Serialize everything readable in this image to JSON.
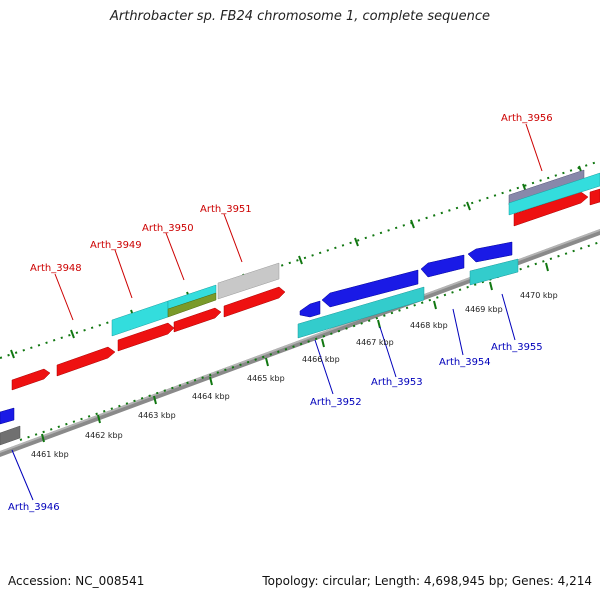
{
  "header": {
    "title": "Arthrobacter sp. FB24 chromosome 1, complete sequence"
  },
  "footer": {
    "accession": "Accession: NC_008541",
    "summary": "Topology: circular; Length: 4,698,945 bp; Genes: 4,214"
  },
  "colors": {
    "forward_gene": "#ee1111",
    "reverse_gene": "#1a1ae6",
    "forward_label": "#cc0000",
    "reverse_label": "#0000bb",
    "cyan_feature": "#33dddd",
    "olive_feature": "#7a9a2a",
    "grey_feature": "#c8c8c8",
    "backbone": "#808080",
    "tick_green": "#117711"
  },
  "scale": {
    "ticks": [
      {
        "label": "4461 kbp"
      },
      {
        "label": "4462 kbp"
      },
      {
        "label": "4463 kbp"
      },
      {
        "label": "4464 kbp"
      },
      {
        "label": "4465 kbp"
      },
      {
        "label": "4466 kbp"
      },
      {
        "label": "4467 kbp"
      },
      {
        "label": "4468 kbp"
      },
      {
        "label": "4469 kbp"
      },
      {
        "label": "4470 kbp"
      }
    ]
  },
  "gene_labels": {
    "forward": [
      "Arth_3948",
      "Arth_3949",
      "Arth_3950",
      "Arth_3951",
      "Arth_3956"
    ],
    "reverse": [
      "Arth_3946",
      "Arth_3952",
      "Arth_3953",
      "Arth_3954",
      "Arth_3955"
    ]
  }
}
